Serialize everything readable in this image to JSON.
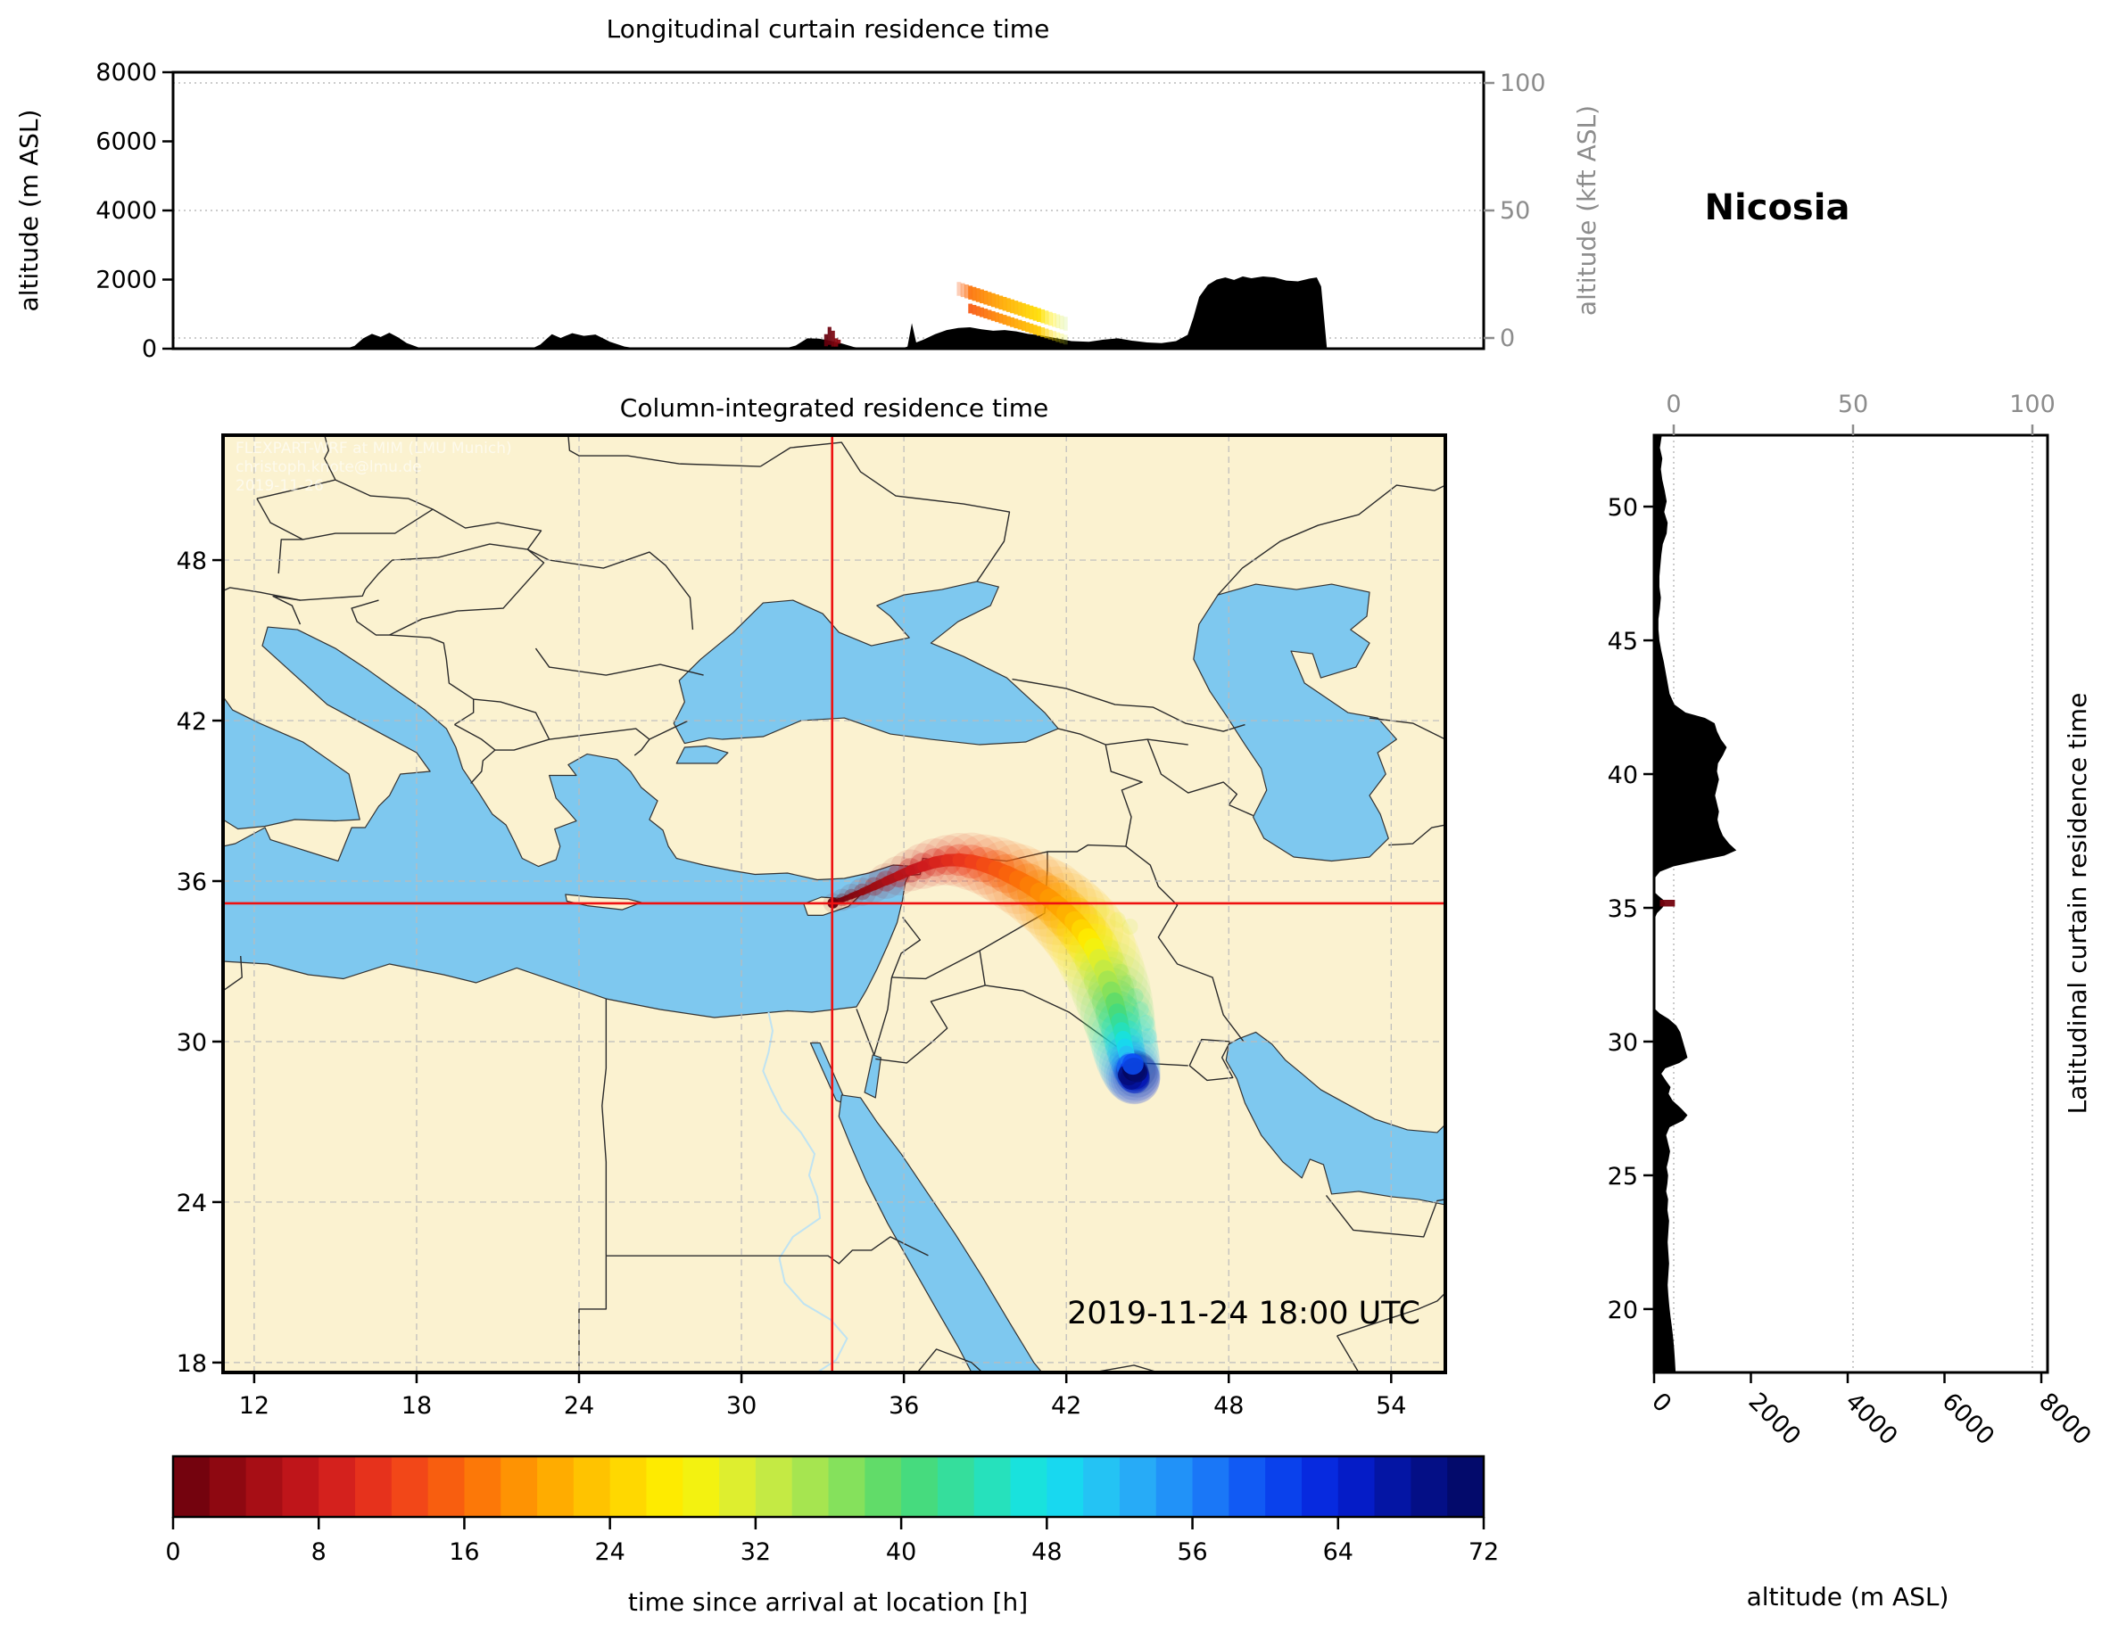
{
  "figure": {
    "station": "Nicosia"
  },
  "colors": {
    "land": "#fbf2d0",
    "sea": "#7ec8ef",
    "coast": "#333333",
    "border": "#2b2b2b",
    "grid": "#bbbbbb",
    "crosshair": "#ee1111",
    "terrain": "#000000",
    "axis_gray": "#8c8c8c",
    "river": "#bfe3f2"
  },
  "chart_data": [
    {
      "id": "top",
      "type": "area",
      "title": "Longitudinal curtain residence time",
      "ylabel_left": "altitude (m ASL)",
      "yticks_left": [
        0,
        2000,
        4000,
        6000,
        8000
      ],
      "ylim": [
        0,
        8000
      ],
      "ylabel_right": "altitude (kft ASL)",
      "yticks_right": [
        0,
        50,
        100
      ],
      "xlim": [
        10.85,
        56.0
      ],
      "grid": "horizontal dotted at right-axis ticks",
      "terrain": [
        [
          10.85,
          0
        ],
        [
          16.8,
          0
        ],
        [
          17.1,
          80
        ],
        [
          17.4,
          300
        ],
        [
          17.7,
          430
        ],
        [
          18.0,
          340
        ],
        [
          18.3,
          460
        ],
        [
          18.6,
          330
        ],
        [
          18.9,
          160
        ],
        [
          19.3,
          40
        ],
        [
          19.8,
          0
        ],
        [
          23.2,
          0
        ],
        [
          23.5,
          120
        ],
        [
          23.9,
          420
        ],
        [
          24.2,
          310
        ],
        [
          24.6,
          450
        ],
        [
          25.0,
          370
        ],
        [
          25.4,
          410
        ],
        [
          25.9,
          200
        ],
        [
          26.4,
          60
        ],
        [
          26.9,
          0
        ],
        [
          31.9,
          0
        ],
        [
          32.3,
          90
        ],
        [
          32.7,
          300
        ],
        [
          33.1,
          290
        ],
        [
          33.5,
          230
        ],
        [
          33.9,
          150
        ],
        [
          34.3,
          50
        ],
        [
          34.7,
          0
        ],
        [
          35.9,
          0
        ],
        [
          36.15,
          60
        ],
        [
          36.3,
          740
        ],
        [
          36.45,
          180
        ],
        [
          36.7,
          260
        ],
        [
          37.1,
          420
        ],
        [
          37.5,
          540
        ],
        [
          37.9,
          600
        ],
        [
          38.3,
          620
        ],
        [
          38.7,
          560
        ],
        [
          39.1,
          520
        ],
        [
          39.5,
          540
        ],
        [
          39.9,
          500
        ],
        [
          40.3,
          430
        ],
        [
          40.8,
          380
        ],
        [
          41.3,
          300
        ],
        [
          41.8,
          220
        ],
        [
          42.4,
          200
        ],
        [
          42.9,
          260
        ],
        [
          43.4,
          300
        ],
        [
          43.9,
          230
        ],
        [
          44.4,
          180
        ],
        [
          44.9,
          160
        ],
        [
          45.4,
          220
        ],
        [
          45.8,
          400
        ],
        [
          46.0,
          900
        ],
        [
          46.2,
          1500
        ],
        [
          46.5,
          1850
        ],
        [
          46.8,
          2000
        ],
        [
          47.1,
          2060
        ],
        [
          47.4,
          1990
        ],
        [
          47.7,
          2090
        ],
        [
          48.0,
          2040
        ],
        [
          48.4,
          2090
        ],
        [
          48.8,
          2060
        ],
        [
          49.2,
          1970
        ],
        [
          49.6,
          1950
        ],
        [
          50.0,
          2030
        ],
        [
          50.25,
          2060
        ],
        [
          50.4,
          1800
        ],
        [
          50.5,
          900
        ],
        [
          50.6,
          0
        ],
        [
          56.0,
          0
        ]
      ],
      "source_columns": [
        [
          33.28,
          70,
          420,
          0
        ],
        [
          33.4,
          110,
          630,
          0.5
        ],
        [
          33.52,
          60,
          520,
          1.5
        ],
        [
          33.63,
          60,
          300,
          2.5
        ],
        [
          33.72,
          140,
          260,
          3
        ]
      ],
      "band": {
        "lon_start": 37.85,
        "lon_step": 0.131,
        "columns": 26,
        "top_start": 1930,
        "top_drop": 36,
        "thick_a": 400,
        "gap": 120,
        "thick_b": 280,
        "age_start": 15,
        "age_step": 0.5,
        "tail_ages": [
          30,
          31.5,
          33
        ]
      }
    },
    {
      "id": "map",
      "type": "map-trajectory",
      "title": "Column-integrated residence time",
      "timestamp": "2019-11-24 18:00 UTC",
      "watermark": [
        "FLEXPART-WRF at MIM (LMU Munich)",
        "christoph.knote@lmu.de",
        "2019-11-26"
      ],
      "xticks": [
        12,
        18,
        24,
        30,
        36,
        42,
        48,
        54
      ],
      "yticks": [
        18,
        24,
        30,
        36,
        42,
        48
      ],
      "xlim": [
        10.85,
        56.0
      ],
      "ylim": [
        17.63,
        52.67
      ],
      "crosshair": {
        "lon": 33.35,
        "lat": 35.17
      },
      "trajectory": [
        [
          33.38,
          35.18,
          0,
          0.16
        ],
        [
          33.72,
          35.3,
          1,
          0.18
        ],
        [
          34.06,
          35.44,
          2,
          0.2
        ],
        [
          34.46,
          35.6,
          3,
          0.23
        ],
        [
          34.9,
          35.8,
          4,
          0.26
        ],
        [
          35.34,
          36.0,
          5,
          0.29
        ],
        [
          35.8,
          36.2,
          6,
          0.32
        ],
        [
          36.24,
          36.4,
          7,
          0.34
        ],
        [
          36.7,
          36.56,
          8,
          0.37
        ],
        [
          37.14,
          36.7,
          9,
          0.39
        ],
        [
          37.6,
          36.78,
          10,
          0.41
        ],
        [
          38.04,
          36.79,
          11,
          0.44
        ],
        [
          38.5,
          36.73,
          12,
          0.47
        ],
        [
          38.94,
          36.62,
          13,
          0.49
        ],
        [
          39.4,
          36.46,
          14,
          0.52
        ],
        [
          39.8,
          36.28,
          15,
          0.54
        ],
        [
          40.2,
          36.08,
          16,
          0.57
        ],
        [
          40.6,
          35.86,
          17,
          0.59
        ],
        [
          41.0,
          35.6,
          18,
          0.61
        ],
        [
          41.36,
          35.36,
          19,
          0.63
        ],
        [
          41.7,
          35.08,
          20,
          0.64
        ],
        [
          42.0,
          34.8,
          21,
          0.66
        ],
        [
          42.3,
          34.5,
          22,
          0.67
        ],
        [
          42.56,
          34.2,
          24,
          0.68
        ],
        [
          42.8,
          33.86,
          26,
          0.68
        ],
        [
          43.02,
          33.5,
          28,
          0.68
        ],
        [
          43.2,
          33.1,
          30,
          0.67
        ],
        [
          43.38,
          32.7,
          32,
          0.66
        ],
        [
          43.52,
          32.3,
          34,
          0.65
        ],
        [
          43.66,
          31.9,
          36,
          0.64
        ],
        [
          43.78,
          31.5,
          38,
          0.62
        ],
        [
          43.88,
          31.1,
          40,
          0.6
        ],
        [
          43.96,
          30.76,
          42,
          0.58
        ],
        [
          44.04,
          30.42,
          44,
          0.56
        ],
        [
          44.1,
          30.1,
          46,
          0.55
        ],
        [
          44.16,
          29.82,
          48,
          0.54
        ],
        [
          44.22,
          29.56,
          50,
          0.53
        ],
        [
          44.28,
          29.32,
          52,
          0.52
        ],
        [
          44.34,
          29.1,
          54,
          0.5
        ],
        [
          44.38,
          28.92,
          56,
          0.48
        ],
        [
          44.43,
          28.78,
          58,
          0.46
        ],
        [
          44.47,
          28.68,
          60,
          0.44
        ],
        [
          44.51,
          28.62,
          62,
          0.42
        ],
        [
          44.55,
          28.6,
          64,
          0.4
        ],
        [
          44.58,
          28.66,
          66,
          0.38
        ],
        [
          44.6,
          28.74,
          68,
          0.36
        ],
        [
          44.6,
          28.84,
          70,
          0.34
        ],
        [
          44.58,
          28.94,
          72,
          0.32
        ]
      ],
      "end_cluster": [
        [
          44.35,
          29.05,
          58,
          0.5
        ],
        [
          44.46,
          28.86,
          62,
          0.52
        ],
        [
          44.56,
          28.7,
          66,
          0.48
        ],
        [
          44.4,
          28.62,
          68,
          0.42
        ],
        [
          44.3,
          28.76,
          70,
          0.4
        ],
        [
          44.5,
          28.96,
          72,
          0.44
        ],
        [
          44.62,
          28.86,
          71,
          0.38
        ],
        [
          44.46,
          29.16,
          60,
          0.4
        ]
      ],
      "wisps": [
        [
          44.55,
          31.7,
          44
        ],
        [
          44.75,
          31.2,
          46
        ],
        [
          44.95,
          30.7,
          48
        ],
        [
          45.05,
          30.2,
          50
        ],
        [
          44.0,
          32.6,
          36
        ],
        [
          44.3,
          32.2,
          38
        ],
        [
          43.3,
          34.9,
          30
        ],
        [
          43.9,
          34.55,
          31
        ],
        [
          44.35,
          34.3,
          32
        ]
      ]
    },
    {
      "id": "right",
      "type": "area",
      "ylabel_right": "Latitudinal curtain residence time",
      "xlabel": "altitude (m ASL)",
      "xticks_bottom": [
        0,
        2000,
        4000,
        6000,
        8000
      ],
      "xticks_top": [
        0,
        50,
        100
      ],
      "yticks": [
        20,
        25,
        30,
        35,
        40,
        45,
        50
      ],
      "xlim": [
        0,
        8000
      ],
      "ylim": [
        17.63,
        52.67
      ],
      "terrain": [
        [
          52.67,
          160
        ],
        [
          52.2,
          120
        ],
        [
          51.8,
          170
        ],
        [
          51.4,
          140
        ],
        [
          51.0,
          170
        ],
        [
          50.6,
          220
        ],
        [
          50.2,
          260
        ],
        [
          49.8,
          210
        ],
        [
          49.4,
          280
        ],
        [
          49.0,
          260
        ],
        [
          48.6,
          180
        ],
        [
          48.2,
          150
        ],
        [
          47.8,
          130
        ],
        [
          47.4,
          110
        ],
        [
          47.0,
          110
        ],
        [
          46.6,
          140
        ],
        [
          46.2,
          120
        ],
        [
          45.8,
          90
        ],
        [
          45.4,
          90
        ],
        [
          45.0,
          110
        ],
        [
          44.6,
          150
        ],
        [
          44.2,
          200
        ],
        [
          43.8,
          240
        ],
        [
          43.4,
          280
        ],
        [
          43.0,
          320
        ],
        [
          42.6,
          420
        ],
        [
          42.3,
          650
        ],
        [
          42.1,
          1050
        ],
        [
          41.9,
          1250
        ],
        [
          41.6,
          1300
        ],
        [
          41.3,
          1380
        ],
        [
          41.0,
          1500
        ],
        [
          40.7,
          1420
        ],
        [
          40.4,
          1320
        ],
        [
          40.1,
          1300
        ],
        [
          39.8,
          1340
        ],
        [
          39.5,
          1300
        ],
        [
          39.2,
          1260
        ],
        [
          38.9,
          1300
        ],
        [
          38.6,
          1340
        ],
        [
          38.3,
          1310
        ],
        [
          38.0,
          1350
        ],
        [
          37.7,
          1420
        ],
        [
          37.4,
          1550
        ],
        [
          37.15,
          1700
        ],
        [
          36.95,
          1450
        ],
        [
          36.75,
          900
        ],
        [
          36.55,
          400
        ],
        [
          36.35,
          120
        ],
        [
          36.15,
          30
        ],
        [
          35.95,
          0
        ],
        [
          35.6,
          0
        ],
        [
          35.45,
          90
        ],
        [
          35.3,
          190
        ],
        [
          35.15,
          230
        ],
        [
          35.0,
          170
        ],
        [
          34.8,
          60
        ],
        [
          34.55,
          0
        ],
        [
          31.25,
          0
        ],
        [
          31.05,
          120
        ],
        [
          30.85,
          300
        ],
        [
          30.6,
          460
        ],
        [
          30.35,
          540
        ],
        [
          30.1,
          580
        ],
        [
          29.85,
          620
        ],
        [
          29.6,
          660
        ],
        [
          29.4,
          690
        ],
        [
          29.2,
          520
        ],
        [
          29.0,
          230
        ],
        [
          28.8,
          150
        ],
        [
          28.55,
          240
        ],
        [
          28.3,
          340
        ],
        [
          28.05,
          300
        ],
        [
          27.8,
          380
        ],
        [
          27.5,
          560
        ],
        [
          27.25,
          690
        ],
        [
          27.05,
          600
        ],
        [
          26.8,
          320
        ],
        [
          26.5,
          250
        ],
        [
          26.2,
          290
        ],
        [
          25.9,
          330
        ],
        [
          25.6,
          300
        ],
        [
          25.3,
          260
        ],
        [
          25.0,
          290
        ],
        [
          24.7,
          275
        ],
        [
          24.4,
          250
        ],
        [
          24.1,
          290
        ],
        [
          23.7,
          275
        ],
        [
          23.3,
          310
        ],
        [
          22.9,
          295
        ],
        [
          22.5,
          280
        ],
        [
          22.1,
          295
        ],
        [
          21.7,
          310
        ],
        [
          21.3,
          295
        ],
        [
          20.9,
          280
        ],
        [
          20.5,
          295
        ],
        [
          20.1,
          315
        ],
        [
          19.7,
          340
        ],
        [
          19.3,
          370
        ],
        [
          18.9,
          395
        ],
        [
          18.5,
          415
        ],
        [
          18.1,
          430
        ],
        [
          17.63,
          445
        ]
      ],
      "source_patch": {
        "lat_range": [
          35.05,
          35.3
        ],
        "alt_range": [
          120,
          430
        ],
        "age": 1
      }
    },
    {
      "id": "colorbar",
      "type": "colorbar",
      "label": "time since arrival at location [h]",
      "ticks": [
        0,
        8,
        16,
        24,
        32,
        40,
        48,
        56,
        64,
        72
      ],
      "range": [
        0,
        72
      ],
      "segments": 36,
      "color_stops": [
        [
          0,
          "#67000d"
        ],
        [
          4,
          "#9b0b12"
        ],
        [
          8,
          "#cb181d"
        ],
        [
          12,
          "#ef3b1c"
        ],
        [
          16,
          "#fb6a0a"
        ],
        [
          20,
          "#ffa000"
        ],
        [
          24,
          "#ffcf00"
        ],
        [
          28,
          "#fef400"
        ],
        [
          32,
          "#d3ec3e"
        ],
        [
          36,
          "#97e356"
        ],
        [
          40,
          "#4fd96f"
        ],
        [
          44,
          "#2ce0ab"
        ],
        [
          48,
          "#12e2ee"
        ],
        [
          52,
          "#2ab8f6"
        ],
        [
          56,
          "#1e85f9"
        ],
        [
          60,
          "#0c4cf2"
        ],
        [
          64,
          "#051fd8"
        ],
        [
          68,
          "#041193"
        ],
        [
          72,
          "#03075e"
        ]
      ]
    }
  ]
}
